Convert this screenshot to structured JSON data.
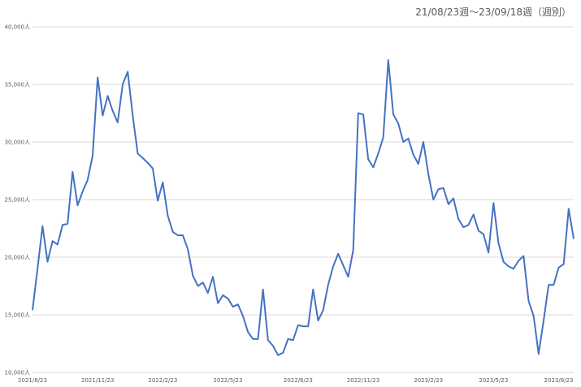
{
  "chart_data": {
    "type": "line",
    "title": "21/08/23週～23/09/18週（週別）",
    "xlabel": "",
    "ylabel": "",
    "ylim": [
      10000,
      40000
    ],
    "y_ticks": [
      "10,000人",
      "15,000人",
      "20,000人",
      "25,000人",
      "30,000人",
      "35,000人",
      "40,000人"
    ],
    "x_ticks": [
      {
        "label": "2021/8/23",
        "index": 0
      },
      {
        "label": "2021/11/23",
        "index": 13
      },
      {
        "label": "2022/2/23",
        "index": 26
      },
      {
        "label": "2022/5/23",
        "index": 39
      },
      {
        "label": "2022/8/23",
        "index": 53
      },
      {
        "label": "2022/11/23",
        "index": 66
      },
      {
        "label": "2023/2/23",
        "index": 79
      },
      {
        "label": "2023/5/23",
        "index": 92
      },
      {
        "label": "2023/8/23",
        "index": 105
      }
    ],
    "grid": true,
    "legend": "none",
    "series": [
      {
        "color": "#4472c4",
        "values": [
          15400,
          19000,
          22700,
          19600,
          21400,
          21100,
          22800,
          22900,
          27400,
          24500,
          25700,
          26700,
          28800,
          35600,
          32300,
          34000,
          32700,
          31700,
          35000,
          36100,
          32300,
          29000,
          28600,
          28200,
          27700,
          24900,
          26500,
          23600,
          22200,
          21900,
          21900,
          20700,
          18400,
          17500,
          17800,
          16900,
          18300,
          16000,
          16700,
          16400,
          15700,
          15900,
          14900,
          13500,
          12900,
          12900,
          17200,
          12800,
          12300,
          11500,
          11700,
          12900,
          12800,
          14100,
          14000,
          14000,
          17200,
          14500,
          15400,
          17600,
          19200,
          20300,
          19300,
          18300,
          20600,
          32500,
          32400,
          28500,
          27800,
          29000,
          30400,
          37100,
          32400,
          31600,
          30000,
          30300,
          28900,
          28100,
          30000,
          27200,
          25000,
          25900,
          26000,
          24600,
          25100,
          23300,
          22600,
          22800,
          23700,
          22300,
          22000,
          20400,
          24700,
          21200,
          19600,
          19200,
          19000,
          19700,
          20100,
          16200,
          14900,
          11600,
          14500,
          17600,
          17600,
          19100,
          19400,
          24200,
          21600
        ]
      }
    ]
  }
}
